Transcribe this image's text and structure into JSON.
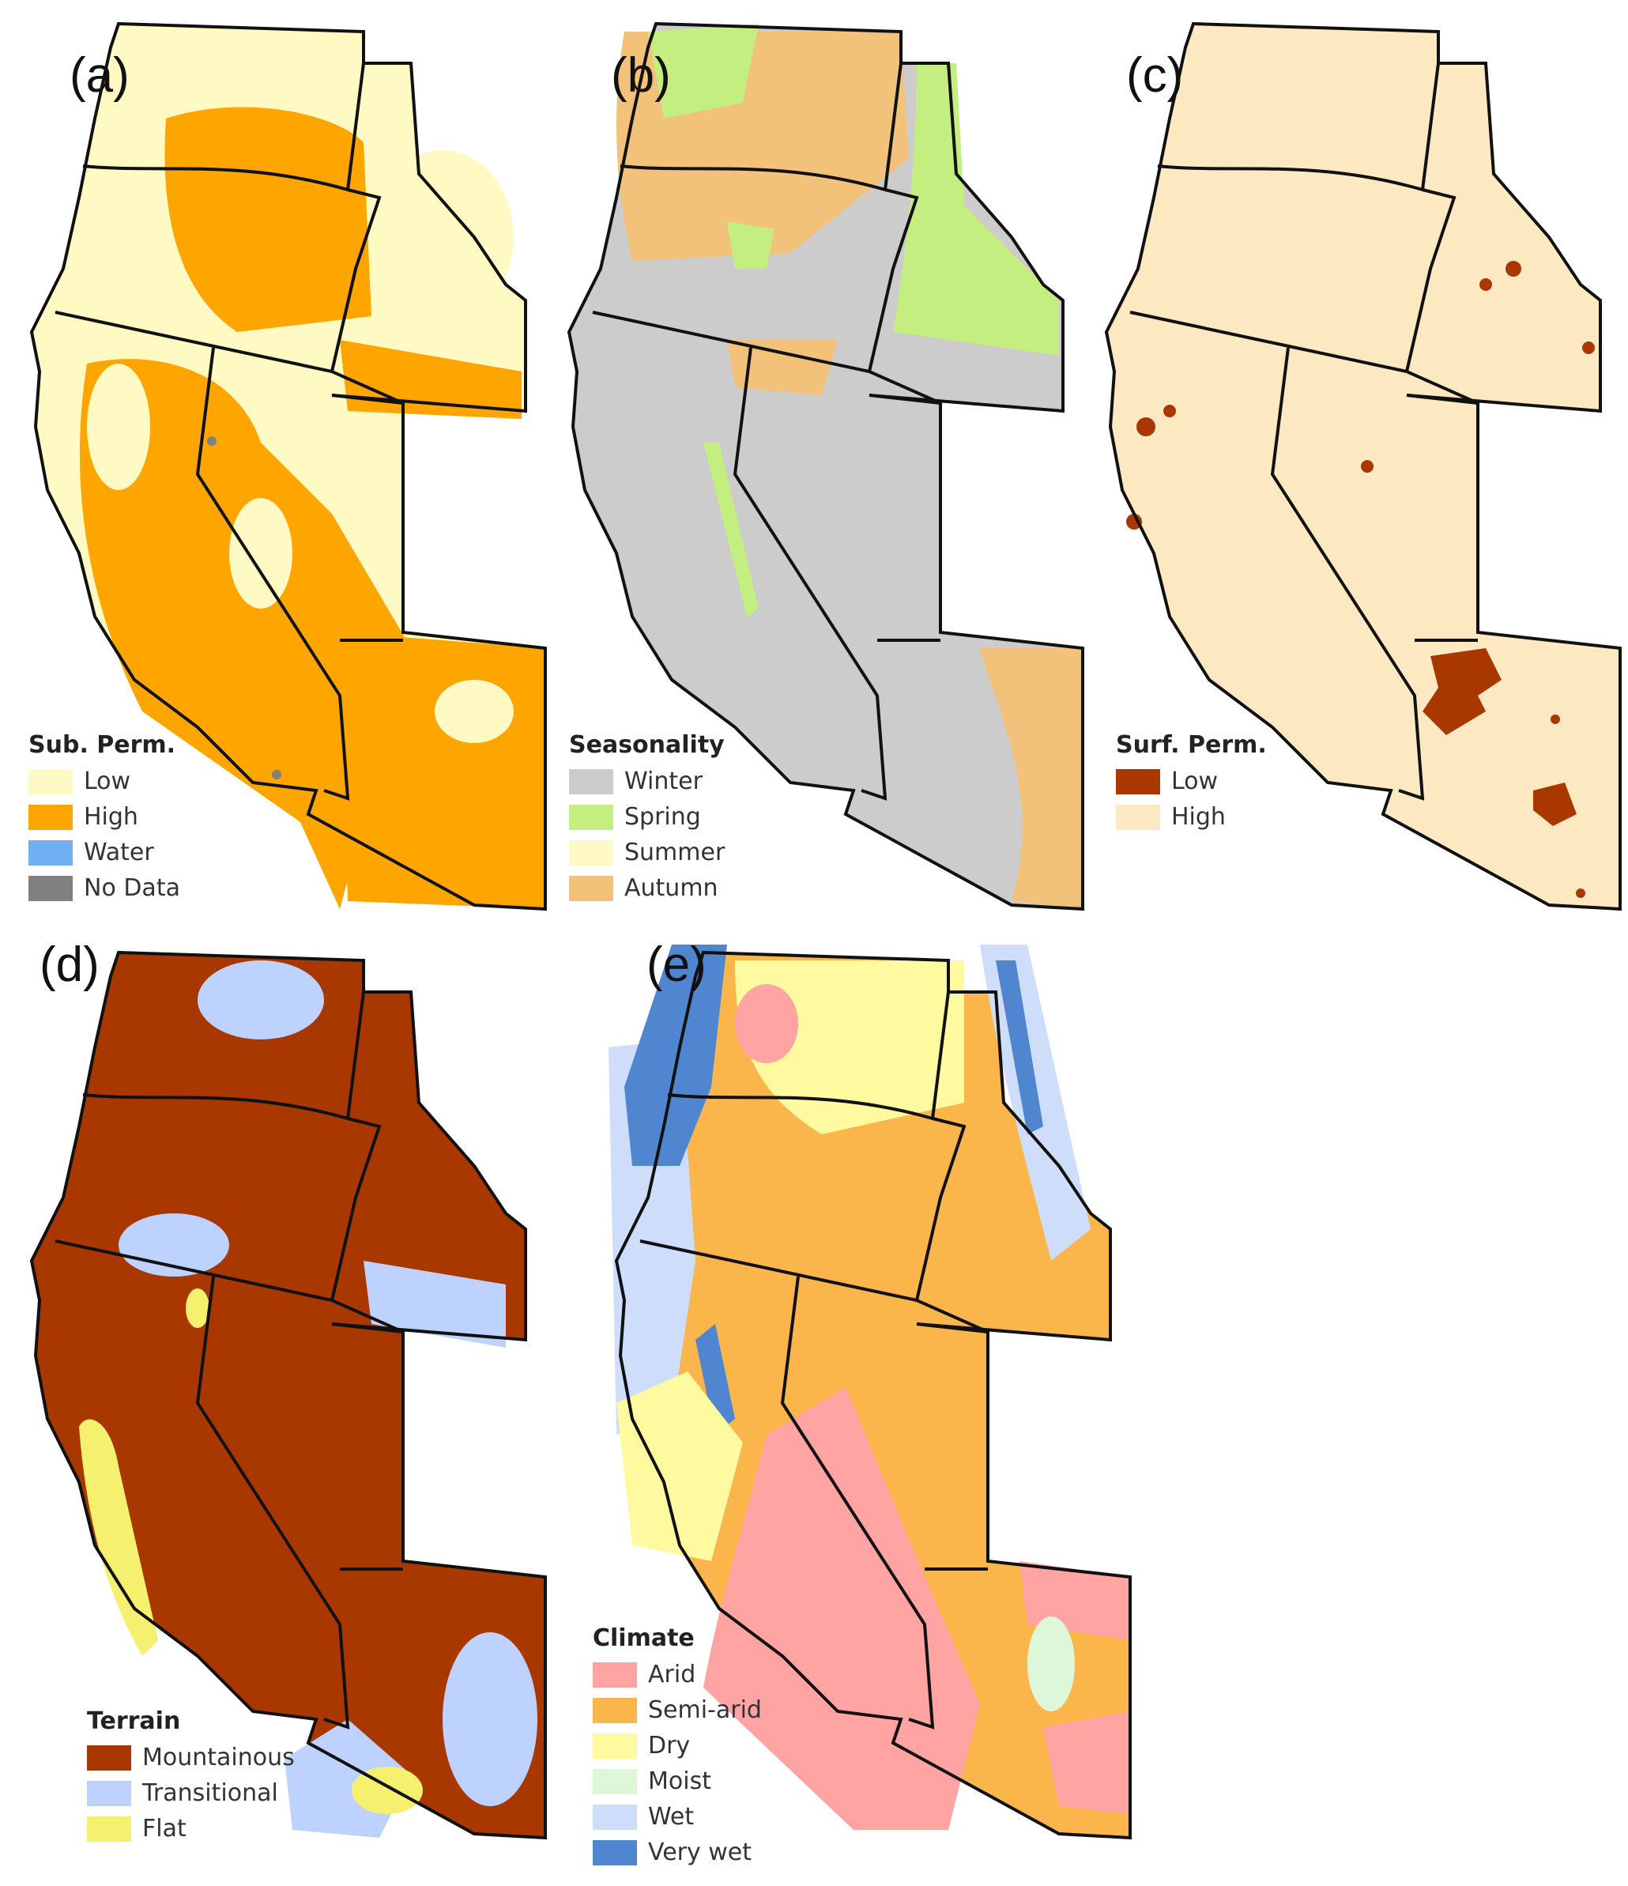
{
  "panels": [
    {
      "id": "a",
      "label": "(a)",
      "legend_title": "Sub. Perm.",
      "base_color": "#fffac4",
      "legend": [
        {
          "label": "Low",
          "color": "#fffac4"
        },
        {
          "label": "High",
          "color": "#ffa500"
        },
        {
          "label": "Water",
          "color": "#6fb0f5"
        },
        {
          "label": "No Data",
          "color": "#808080"
        }
      ]
    },
    {
      "id": "b",
      "label": "(b)",
      "legend_title": "Seasonality",
      "base_color": "#cccccc",
      "legend": [
        {
          "label": "Winter",
          "color": "#cccccc"
        },
        {
          "label": "Spring",
          "color": "#c4ee80"
        },
        {
          "label": "Summer",
          "color": "#fffac4"
        },
        {
          "label": "Autumn",
          "color": "#f3c27a"
        }
      ]
    },
    {
      "id": "c",
      "label": "(c)",
      "legend_title": "Surf. Perm.",
      "base_color": "#fde9c1",
      "legend": [
        {
          "label": "Low",
          "color": "#a83800"
        },
        {
          "label": "High",
          "color": "#fde9c1"
        }
      ]
    },
    {
      "id": "d",
      "label": "(d)",
      "legend_title": "Terrain",
      "base_color": "#a83800",
      "legend": [
        {
          "label": "Mountainous",
          "color": "#a83800"
        },
        {
          "label": "Transitional",
          "color": "#bed2ff"
        },
        {
          "label": "Flat",
          "color": "#f5f06e"
        }
      ]
    },
    {
      "id": "e",
      "label": "(e)",
      "legend_title": "Climate",
      "base_color": "#fbb64b",
      "legend": [
        {
          "label": "Arid",
          "color": "#ffa3a3"
        },
        {
          "label": "Semi-arid",
          "color": "#fbb64b"
        },
        {
          "label": "Dry",
          "color": "#fffa9f"
        },
        {
          "label": "Moist",
          "color": "#def7d9"
        },
        {
          "label": "Wet",
          "color": "#cdddfa"
        },
        {
          "label": "Very wet",
          "color": "#4f86cf"
        }
      ]
    }
  ]
}
